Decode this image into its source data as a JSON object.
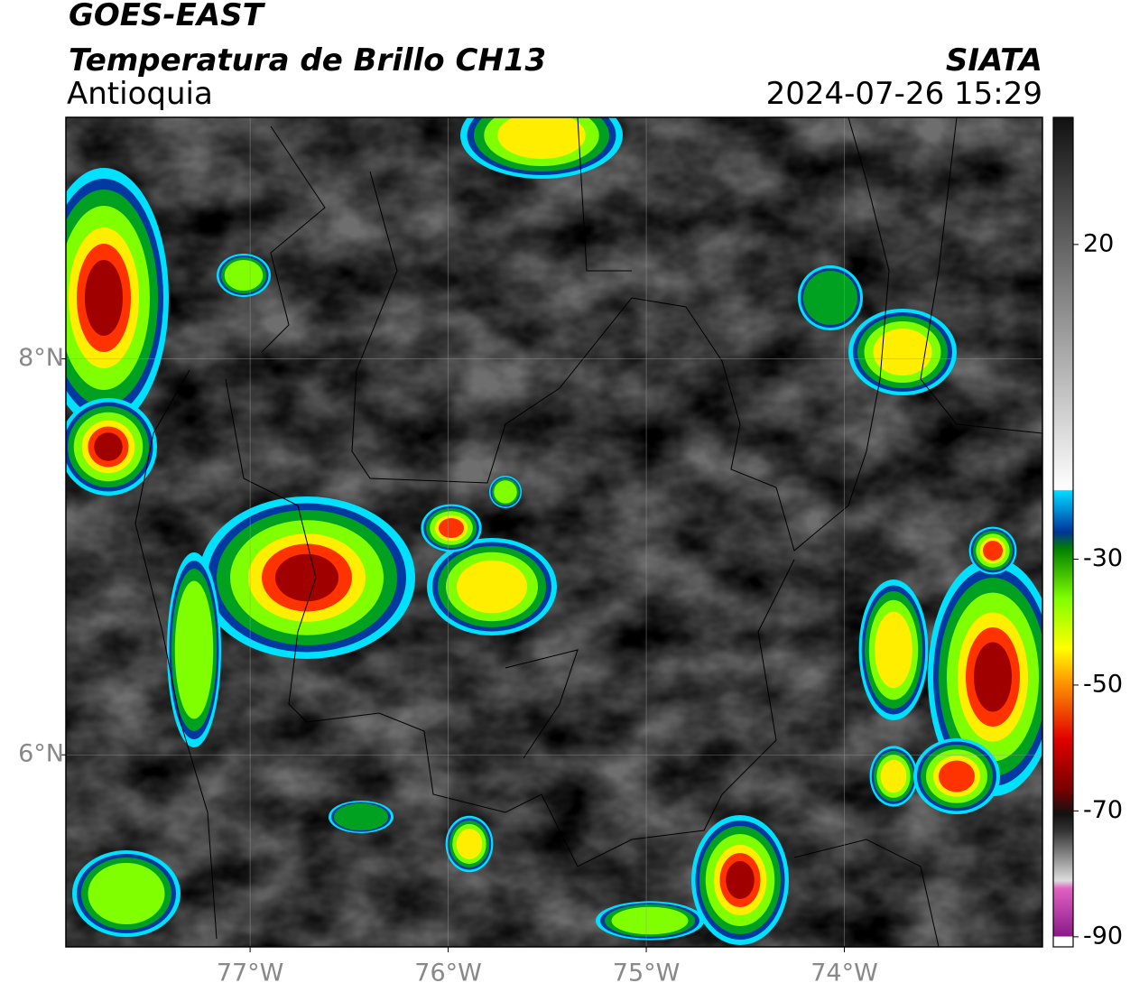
{
  "map": {
    "title": "GOES-EAST",
    "subtitle": "Temperatura de Brillo CH13",
    "region": "Antioquia",
    "source": "SIATA",
    "datetime": "2024-07-26 15:29",
    "lon_range": [
      -77.93,
      -73.0
    ],
    "lat_range": [
      5.03,
      9.22
    ],
    "lon_ticks": [
      {
        "value": -77,
        "label": "77°W"
      },
      {
        "value": -76,
        "label": "76°W"
      },
      {
        "value": -75,
        "label": "75°W"
      },
      {
        "value": -74,
        "label": "74°W"
      }
    ],
    "lat_ticks": [
      {
        "value": 6,
        "label": "6°N"
      },
      {
        "value": 8,
        "label": "8°N"
      }
    ],
    "grid": true,
    "colorbar": {
      "range": [
        -91.6,
        40.2
      ],
      "ticks": [
        20,
        -30,
        -50,
        -70,
        -90
      ]
    }
  }
}
